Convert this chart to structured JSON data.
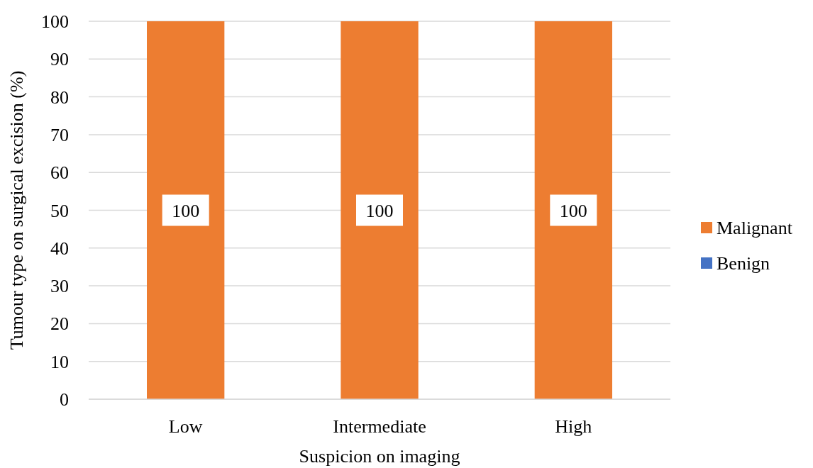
{
  "chart_data": {
    "type": "bar",
    "stacked": true,
    "xlabel": "Suspicion on imaging",
    "ylabel": "Tumour type on surgical excision (%)",
    "categories": [
      "Low",
      "Intermediate",
      "High"
    ],
    "series": [
      {
        "name": "Malignant",
        "color": "#ed7d31",
        "values": [
          100,
          100,
          100
        ],
        "value_labels": [
          "100",
          "100",
          "100"
        ]
      },
      {
        "name": "Benign",
        "color": "#4472c4",
        "values": [
          0,
          0,
          0
        ],
        "value_labels": [
          null,
          null,
          null
        ]
      }
    ],
    "ylim": [
      0,
      100
    ],
    "yticks": [
      0,
      10,
      20,
      30,
      40,
      50,
      60,
      70,
      80,
      90,
      100
    ],
    "grid": "y",
    "legend": "right"
  }
}
